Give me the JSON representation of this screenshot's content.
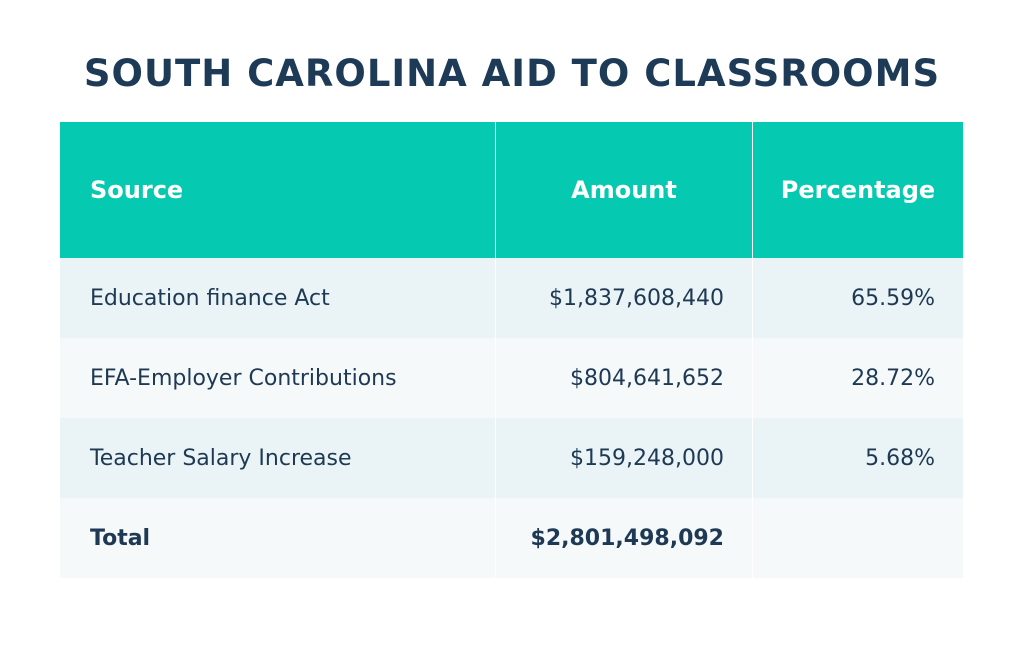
{
  "title": "SOUTH CAROLINA AID TO CLASSROOMS",
  "table": {
    "header": [
      "Source",
      "Amount",
      "Percentage"
    ],
    "rows": [
      [
        "Education finance Act",
        "$1,837,608,440",
        "65.59%"
      ],
      [
        "EFA-Employer Contributions",
        "$804,641,652",
        "28.72%"
      ],
      [
        "Teacher Salary Increase",
        "$159,248,000",
        "5.68%"
      ]
    ],
    "total": [
      "Total",
      "$2,801,498,092"
    ]
  }
}
